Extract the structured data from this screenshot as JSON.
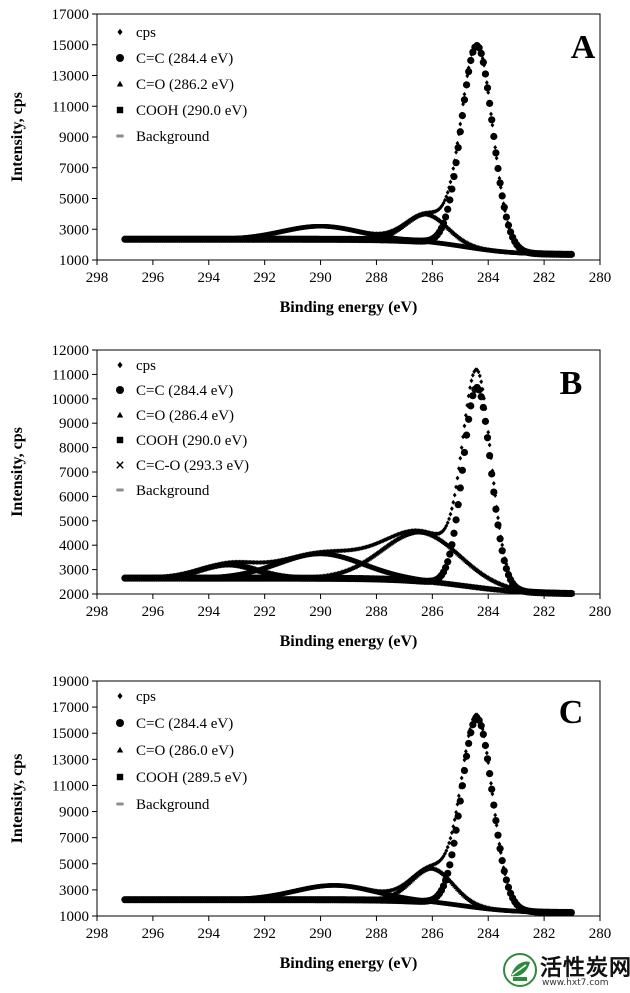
{
  "chart_data": [
    {
      "type": "scatter",
      "panel_label": "A",
      "xlabel": "Binding energy (eV)",
      "ylabel": "Intensity, cps",
      "xlim": [
        298,
        280
      ],
      "ylim": [
        1000,
        17000
      ],
      "xticks": [
        298,
        296,
        294,
        292,
        290,
        288,
        286,
        284,
        282,
        280
      ],
      "yticks": [
        1000,
        3000,
        5000,
        7000,
        9000,
        11000,
        13000,
        15000,
        17000
      ],
      "background": {
        "start": 2350,
        "end": 1350,
        "mid": 284.8,
        "width": 0.9
      },
      "components": [
        {
          "name": "C=C (284.4 eV)",
          "center": 284.4,
          "height": 13200,
          "sigma": 0.56
        },
        {
          "name": "C=O (286.2 eV)",
          "center": 286.2,
          "height": 1800,
          "sigma": 0.75
        },
        {
          "name": "COOH (290.0 eV)",
          "center": 290.0,
          "height": 850,
          "sigma": 1.35
        }
      ],
      "legend": [
        {
          "label": "cps",
          "marker": "diamond"
        },
        {
          "label": "C=C (284.4 eV)",
          "marker": "circle"
        },
        {
          "label": "C=O (286.2 eV)",
          "marker": "triangle"
        },
        {
          "label": "COOH (290.0 eV)",
          "marker": "square"
        },
        {
          "label": "Background",
          "marker": "dash"
        }
      ]
    },
    {
      "type": "scatter",
      "panel_label": "B",
      "xlabel": "Binding energy (eV)",
      "ylabel": "Intensity, cps",
      "xlim": [
        298,
        280
      ],
      "ylim": [
        2000,
        12000
      ],
      "xticks": [
        298,
        296,
        294,
        292,
        290,
        288,
        286,
        284,
        282,
        280
      ],
      "yticks": [
        2000,
        3000,
        4000,
        5000,
        6000,
        7000,
        8000,
        9000,
        10000,
        11000,
        12000
      ],
      "background": {
        "start": 2650,
        "end": 2000,
        "mid": 284.8,
        "width": 1.1
      },
      "components": [
        {
          "name": "C=C (284.4 eV)",
          "center": 284.4,
          "height": 8200,
          "sigma": 0.5
        },
        {
          "name": "C=O (286.4 eV)",
          "center": 286.4,
          "height": 2000,
          "sigma": 1.4
        },
        {
          "name": "COOH (290.0 eV)",
          "center": 290.0,
          "height": 1000,
          "sigma": 1.5
        },
        {
          "name": "C=C-O (293.3 eV)",
          "center": 293.3,
          "height": 550,
          "sigma": 1.0
        }
      ],
      "legend": [
        {
          "label": "cps",
          "marker": "diamond"
        },
        {
          "label": "C=C (284.4 eV)",
          "marker": "circle"
        },
        {
          "label": "C=O (286.4 eV)",
          "marker": "triangle"
        },
        {
          "label": "COOH (290.0 eV)",
          "marker": "square"
        },
        {
          "label": "C=C-O (293.3 eV)",
          "marker": "cross"
        },
        {
          "label": "Background",
          "marker": "dash"
        }
      ]
    },
    {
      "type": "scatter",
      "panel_label": "C",
      "xlabel": "Binding energy (eV)",
      "ylabel": "Intensity, cps",
      "xlim": [
        298,
        280
      ],
      "ylim": [
        1000,
        19000
      ],
      "xticks": [
        298,
        296,
        294,
        292,
        290,
        288,
        286,
        284,
        282,
        280
      ],
      "yticks": [
        1000,
        3000,
        5000,
        7000,
        9000,
        11000,
        13000,
        15000,
        17000,
        19000
      ],
      "background": {
        "start": 2250,
        "end": 1250,
        "mid": 284.8,
        "width": 0.9
      },
      "components": [
        {
          "name": "C=C (284.4 eV)",
          "center": 284.4,
          "height": 14500,
          "sigma": 0.55
        },
        {
          "name": "C=O (286.0 eV)",
          "center": 286.0,
          "height": 2600,
          "sigma": 0.75
        },
        {
          "name": "COOH (289.5 eV)",
          "center": 289.5,
          "height": 1100,
          "sigma": 1.4
        }
      ],
      "legend": [
        {
          "label": "cps",
          "marker": "diamond"
        },
        {
          "label": "C=C (284.4 eV)",
          "marker": "circle"
        },
        {
          "label": "C=O (286.0 eV)",
          "marker": "triangle"
        },
        {
          "label": "COOH (289.5 eV)",
          "marker": "square"
        },
        {
          "label": "Background",
          "marker": "dash"
        }
      ]
    }
  ],
  "colors": {
    "marker": "#000000",
    "background_line": "#8c8c8c",
    "watermark_green": "#2e8b3d"
  },
  "watermark": {
    "title": "活性炭网",
    "url": "www.hxt7.com"
  }
}
